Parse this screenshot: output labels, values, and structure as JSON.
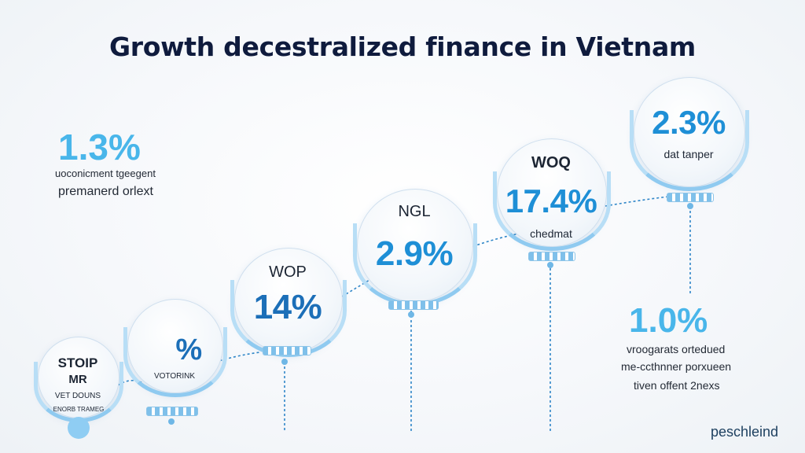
{
  "title": "Growth decestralized finance in Vietnam",
  "brand": "peschleind",
  "left_note": {
    "value": "1.3%",
    "line1": "uoconicment tgeegent",
    "line2": "premanerd orlext"
  },
  "right_note": {
    "value": "1.0%",
    "line1": "vroogarats ortedued",
    "line2": "me-ccthnner porxueen",
    "line3": "tiven offent 2nexs"
  },
  "balloons": [
    {
      "label": "STOIP",
      "value": "MR",
      "caption": "VET DOUNS",
      "caption2": "ENORB TRAMEG"
    },
    {
      "label": "",
      "value": "%",
      "caption": "VOTORINK"
    },
    {
      "label": "WOP",
      "value": "14%",
      "caption": ""
    },
    {
      "label": "NGL",
      "value": "2.9%",
      "caption": ""
    },
    {
      "label": "WOQ",
      "value": "17.4%",
      "caption": "chedmat"
    },
    {
      "label": "",
      "value": "2.3%",
      "caption": "dat tanper"
    }
  ],
  "colors": {
    "accent": "#1e8fd6",
    "light_accent": "#49b6ea",
    "title": "#0f1b3d"
  }
}
